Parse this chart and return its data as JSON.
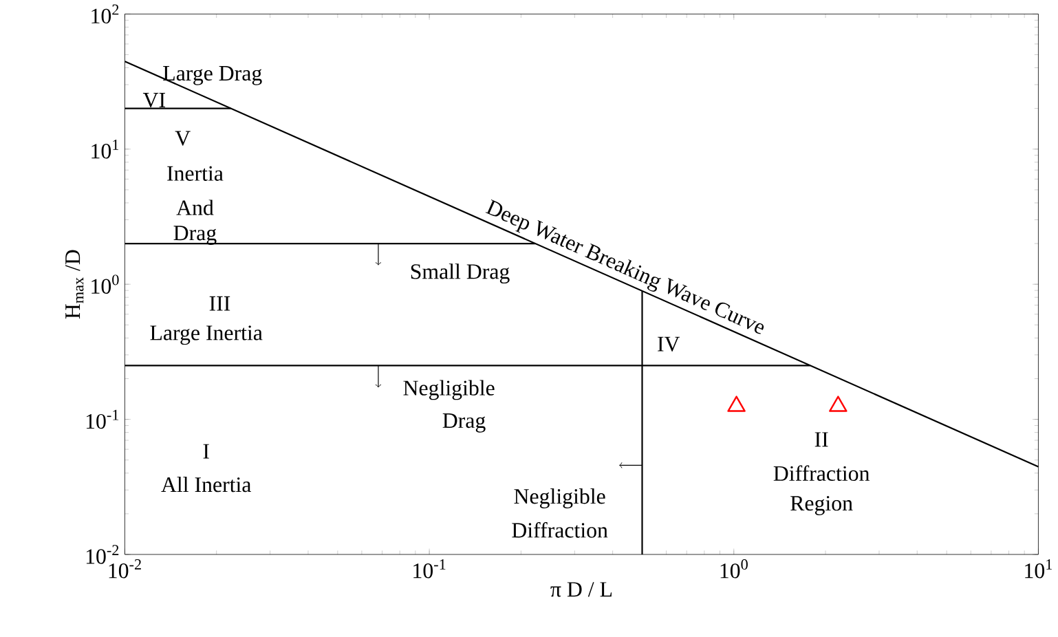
{
  "chart_data": {
    "type": "line",
    "xlabel": "π D / L",
    "ylabel": "H$_{max}$ /D",
    "log": "xy",
    "grid": false,
    "xlim": [
      0.01,
      10
    ],
    "ylim": [
      0.01,
      100
    ],
    "xticks": [
      {
        "value": 0.01,
        "label": "10$^{-2}$"
      },
      {
        "value": 0.1,
        "label": "10$^{-1}$"
      },
      {
        "value": 1,
        "label": "10$^{0}$"
      },
      {
        "value": 10,
        "label": "10$^{1}$"
      }
    ],
    "yticks": [
      {
        "value": 0.01,
        "label": "10$^{-2}$"
      },
      {
        "value": 0.1,
        "label": "10$^{-1}$"
      },
      {
        "value": 1,
        "label": "10$^{0}$"
      },
      {
        "value": 10,
        "label": "10$^{1}$"
      },
      {
        "value": 100,
        "label": "10$^{2}$"
      }
    ],
    "series": [
      {
        "color": "#000000",
        "x": [
          0.01,
          10
        ],
        "values": [
          44.6,
          0.0446
        ]
      },
      {
        "color": "#000000",
        "x": [
          0.01,
          0.0223
        ],
        "values": [
          20,
          20
        ]
      },
      {
        "color": "#000000",
        "x": [
          0.01,
          0.223
        ],
        "values": [
          2,
          2
        ]
      },
      {
        "color": "#000000",
        "x": [
          0.01,
          1.78
        ],
        "values": [
          0.25,
          0.25
        ]
      },
      {
        "color": "#000000",
        "x": [
          0.5,
          0.5
        ],
        "values": [
          0.01,
          0.892
        ]
      },
      {
        "type": "scatter",
        "color": "#ff0000",
        "marker": "triangle",
        "x": [
          1.02,
          2.2
        ],
        "values": [
          0.125,
          0.125
        ]
      }
    ],
    "annotations": [
      "Deep Water Breaking Wave Curve",
      "Large Drag",
      "VI",
      "V",
      "Inertia",
      "And",
      "Drag",
      "Small Drag",
      "III",
      "Large Inertia",
      "Negligible",
      "Drag",
      "I",
      "All Inertia",
      "IV",
      "Negligible",
      "Diffraction",
      "II",
      "Diffraction",
      "Region"
    ]
  }
}
